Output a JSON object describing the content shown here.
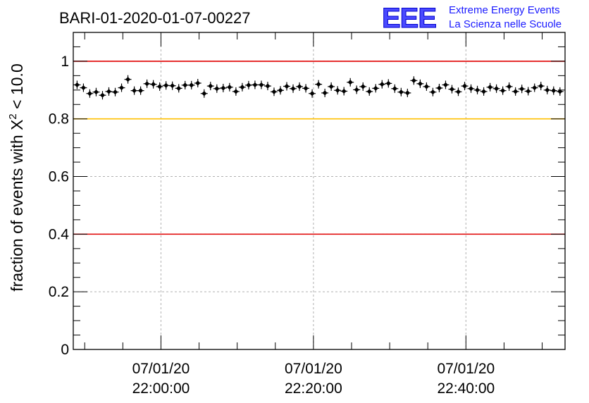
{
  "header": {
    "run_title": "BARI-01-2020-01-07-00227",
    "logo_mark": "EEE",
    "logo_line1": "Extreme Energy Events",
    "logo_line2": "La Scienza nelle Scuole"
  },
  "colors": {
    "reference_red": "#e00000",
    "reference_yellow": "#ffc000",
    "marker": "#000000",
    "grid": "#b0b0b0"
  },
  "chart_data": {
    "type": "scatter",
    "title": "BARI-01-2020-01-07-00227",
    "xlabel": "",
    "ylabel_prefix": "fraction of events with ",
    "ylabel_symbol": "X",
    "ylabel_superscript": "2",
    "ylabel_suffix": " < 10.0",
    "ylim": [
      0,
      1.1
    ],
    "xlim": [
      "2020-01-07 21:48:30",
      "2020-01-07 22:53:00"
    ],
    "y_ticks": [
      {
        "value": 0,
        "label": "0"
      },
      {
        "value": 0.2,
        "label": "0.2"
      },
      {
        "value": 0.4,
        "label": "0.4"
      },
      {
        "value": 0.6,
        "label": "0.6"
      },
      {
        "value": 0.8,
        "label": "0.8"
      },
      {
        "value": 1,
        "label": "1"
      }
    ],
    "x_ticks": [
      {
        "time": "2020-01-07 22:00:00",
        "date_label": "07/01/20",
        "time_label": "22:00:00"
      },
      {
        "time": "2020-01-07 22:20:00",
        "date_label": "07/01/20",
        "time_label": "22:20:00"
      },
      {
        "time": "2020-01-07 22:40:00",
        "date_label": "07/01/20",
        "time_label": "22:40:00"
      }
    ],
    "grid": true,
    "reference_lines": [
      {
        "y": 1.0,
        "color": "#e00000"
      },
      {
        "y": 0.8,
        "color": "#ffc000"
      },
      {
        "y": 0.4,
        "color": "#e00000"
      }
    ],
    "series": [
      {
        "x": [
          "2020-01-07 21:49:00",
          "2020-01-07 21:49:50",
          "2020-01-07 21:50:40",
          "2020-01-07 21:51:30",
          "2020-01-07 21:52:20",
          "2020-01-07 21:53:10",
          "2020-01-07 21:54:00",
          "2020-01-07 21:54:50",
          "2020-01-07 21:55:40",
          "2020-01-07 21:56:30",
          "2020-01-07 21:57:20",
          "2020-01-07 21:58:10",
          "2020-01-07 21:59:00",
          "2020-01-07 21:59:50",
          "2020-01-07 22:00:40",
          "2020-01-07 22:01:30",
          "2020-01-07 22:02:20",
          "2020-01-07 22:03:10",
          "2020-01-07 22:04:00",
          "2020-01-07 22:04:50",
          "2020-01-07 22:05:40",
          "2020-01-07 22:06:30",
          "2020-01-07 22:07:20",
          "2020-01-07 22:08:10",
          "2020-01-07 22:09:00",
          "2020-01-07 22:09:50",
          "2020-01-07 22:10:40",
          "2020-01-07 22:11:30",
          "2020-01-07 22:12:20",
          "2020-01-07 22:13:10",
          "2020-01-07 22:14:00",
          "2020-01-07 22:14:50",
          "2020-01-07 22:15:40",
          "2020-01-07 22:16:30",
          "2020-01-07 22:17:20",
          "2020-01-07 22:18:10",
          "2020-01-07 22:19:00",
          "2020-01-07 22:19:50",
          "2020-01-07 22:20:40",
          "2020-01-07 22:21:30",
          "2020-01-07 22:22:20",
          "2020-01-07 22:23:10",
          "2020-01-07 22:24:00",
          "2020-01-07 22:24:50",
          "2020-01-07 22:25:40",
          "2020-01-07 22:26:30",
          "2020-01-07 22:27:20",
          "2020-01-07 22:28:10",
          "2020-01-07 22:29:00",
          "2020-01-07 22:29:50",
          "2020-01-07 22:30:40",
          "2020-01-07 22:31:30",
          "2020-01-07 22:32:20",
          "2020-01-07 22:33:10",
          "2020-01-07 22:34:00",
          "2020-01-07 22:34:50",
          "2020-01-07 22:35:40",
          "2020-01-07 22:36:30",
          "2020-01-07 22:37:20",
          "2020-01-07 22:38:10",
          "2020-01-07 22:39:00",
          "2020-01-07 22:39:50",
          "2020-01-07 22:40:40",
          "2020-01-07 22:41:30",
          "2020-01-07 22:42:20",
          "2020-01-07 22:43:10",
          "2020-01-07 22:44:00",
          "2020-01-07 22:44:50",
          "2020-01-07 22:45:40",
          "2020-01-07 22:46:30",
          "2020-01-07 22:47:20",
          "2020-01-07 22:48:10",
          "2020-01-07 22:49:00",
          "2020-01-07 22:49:50",
          "2020-01-07 22:50:40",
          "2020-01-07 22:51:30",
          "2020-01-07 22:52:20"
        ],
        "y": [
          0.918,
          0.908,
          0.888,
          0.893,
          0.882,
          0.895,
          0.893,
          0.908,
          0.937,
          0.898,
          0.898,
          0.922,
          0.92,
          0.912,
          0.916,
          0.915,
          0.906,
          0.917,
          0.917,
          0.924,
          0.888,
          0.914,
          0.905,
          0.907,
          0.91,
          0.895,
          0.91,
          0.917,
          0.918,
          0.918,
          0.914,
          0.894,
          0.899,
          0.913,
          0.905,
          0.912,
          0.906,
          0.888,
          0.92,
          0.89,
          0.912,
          0.899,
          0.896,
          0.927,
          0.901,
          0.912,
          0.895,
          0.906,
          0.92,
          0.923,
          0.905,
          0.893,
          0.89,
          0.933,
          0.922,
          0.912,
          0.893,
          0.907,
          0.918,
          0.903,
          0.894,
          0.914,
          0.905,
          0.9,
          0.895,
          0.91,
          0.905,
          0.898,
          0.912,
          0.895,
          0.904,
          0.896,
          0.908,
          0.914,
          0.9,
          0.898,
          0.895
        ]
      }
    ]
  }
}
